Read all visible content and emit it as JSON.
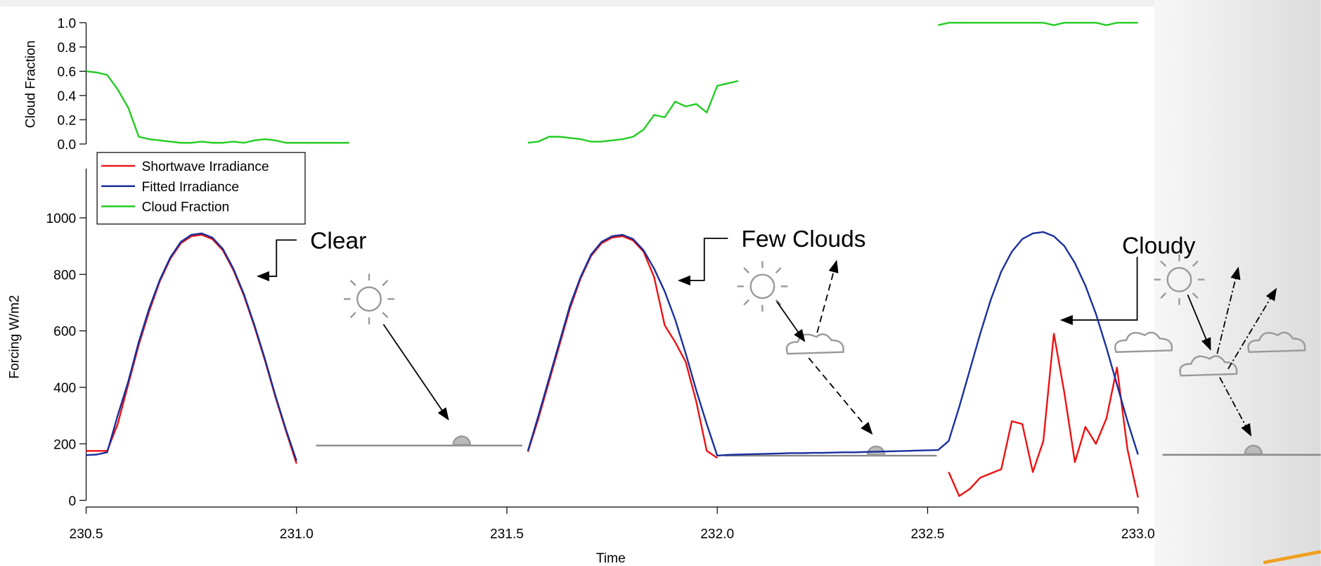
{
  "chart_data": {
    "type": "line",
    "x_label": "Time",
    "y_label": "Forcing W/m2",
    "y2_label": "Cloud Fraction",
    "xlim": [
      230.5,
      233.0
    ],
    "xticks": [
      230.5,
      {
        "value": 231.0,
        "label": "231.0"
      },
      231.5,
      {
        "value": 232.0,
        "label": "232.0"
      },
      232.5,
      {
        "value": 233.0,
        "label": "233.0"
      }
    ],
    "ylim": [
      0,
      1175
    ],
    "yticks": [
      0,
      200,
      400,
      600,
      800,
      1000
    ],
    "y2lim": [
      0,
      1
    ],
    "y2ticks": [
      {
        "value": 0,
        "label": "0.0"
      },
      0.2,
      0.4,
      0.6,
      0.8,
      {
        "value": 1,
        "label": "1.0"
      }
    ],
    "annotations": [
      "Clear",
      "Few Clouds",
      "Cloudy"
    ],
    "legend": "upper left",
    "x": [
      230.5,
      230.525,
      230.55,
      230.575,
      230.6,
      230.625,
      230.65,
      230.675,
      230.7,
      230.725,
      230.75,
      230.775,
      230.8,
      230.825,
      230.85,
      230.875,
      230.9,
      230.925,
      230.95,
      230.975,
      231.0,
      231.025,
      231.05,
      231.075,
      231.1,
      231.125,
      231.15,
      231.175,
      231.2,
      231.225,
      231.25,
      231.275,
      231.3,
      231.325,
      231.35,
      231.375,
      231.4,
      231.425,
      231.45,
      231.475,
      231.5,
      231.525,
      231.55,
      231.575,
      231.6,
      231.625,
      231.65,
      231.675,
      231.7,
      231.725,
      231.75,
      231.775,
      231.8,
      231.825,
      231.85,
      231.875,
      231.9,
      231.925,
      231.95,
      231.975,
      232.0,
      232.025,
      232.05,
      232.075,
      232.1,
      232.125,
      232.15,
      232.175,
      232.2,
      232.225,
      232.25,
      232.275,
      232.3,
      232.325,
      232.35,
      232.375,
      232.4,
      232.425,
      232.45,
      232.475,
      232.5,
      232.525,
      232.55,
      232.575,
      232.6,
      232.625,
      232.65,
      232.675,
      232.7,
      232.725,
      232.75,
      232.775,
      232.8,
      232.825,
      232.85,
      232.875,
      232.9,
      232.925,
      232.95,
      232.975,
      233.0
    ],
    "series": [
      {
        "name": "Shortwave Irradiance",
        "color": "#ee1111",
        "values": [
          175,
          175,
          175,
          270,
          410,
          550,
          670,
          775,
          855,
          910,
          935,
          940,
          925,
          885,
          815,
          725,
          615,
          495,
          365,
          245,
          130,
          null,
          null,
          null,
          null,
          null,
          null,
          null,
          null,
          null,
          null,
          null,
          null,
          null,
          null,
          null,
          null,
          null,
          null,
          null,
          null,
          null,
          172,
          290,
          420,
          550,
          680,
          785,
          865,
          910,
          930,
          935,
          920,
          880,
          790,
          620,
          560,
          490,
          350,
          175,
          150,
          null,
          null,
          null,
          null,
          null,
          null,
          null,
          null,
          null,
          null,
          null,
          null,
          null,
          null,
          null,
          null,
          null,
          null,
          null,
          null,
          null,
          100,
          15,
          40,
          80,
          95,
          110,
          280,
          270,
          100,
          210,
          590,
          380,
          135,
          260,
          200,
          290,
          470,
          180,
          10
        ]
      },
      {
        "name": "Fitted Irradiance",
        "color": "#1a2f9c",
        "values": [
          160,
          162,
          170,
          300,
          420,
          560,
          680,
          780,
          860,
          915,
          940,
          945,
          930,
          890,
          820,
          730,
          620,
          500,
          370,
          250,
          140,
          null,
          null,
          null,
          null,
          null,
          null,
          null,
          null,
          null,
          null,
          null,
          null,
          null,
          null,
          null,
          null,
          null,
          null,
          null,
          null,
          null,
          175,
          300,
          430,
          560,
          690,
          790,
          870,
          915,
          935,
          940,
          925,
          885,
          820,
          740,
          640,
          520,
          390,
          270,
          158,
          161,
          162,
          163,
          164,
          165,
          166,
          167,
          167,
          168,
          168,
          169,
          170,
          170,
          171,
          172,
          173,
          174,
          175,
          176,
          177,
          178,
          210,
          330,
          460,
          590,
          710,
          810,
          880,
          925,
          945,
          950,
          935,
          900,
          840,
          760,
          660,
          540,
          410,
          280,
          162
        ]
      },
      {
        "name": "Cloud Fraction",
        "color": "#22cc22",
        "axis": "y2",
        "values": [
          0.6,
          0.59,
          0.57,
          0.45,
          0.3,
          0.06,
          0.04,
          0.03,
          0.02,
          0.01,
          0.01,
          0.02,
          0.01,
          0.01,
          0.02,
          0.01,
          0.03,
          0.04,
          0.03,
          0.01,
          0.01,
          0.01,
          0.01,
          0.01,
          0.01,
          0.01,
          null,
          null,
          null,
          null,
          null,
          null,
          null,
          null,
          null,
          null,
          null,
          null,
          null,
          null,
          null,
          null,
          0.01,
          0.02,
          0.06,
          0.06,
          0.05,
          0.04,
          0.02,
          0.02,
          0.03,
          0.04,
          0.06,
          0.12,
          0.24,
          0.22,
          0.35,
          0.31,
          0.33,
          0.26,
          0.48,
          0.5,
          0.52,
          null,
          null,
          null,
          null,
          null,
          null,
          null,
          null,
          null,
          null,
          null,
          null,
          null,
          null,
          null,
          null,
          null,
          null,
          0.98,
          1.0,
          1.0,
          1.0,
          1.0,
          1.0,
          1.0,
          1.0,
          1.0,
          1.0,
          1.0,
          0.98,
          1.0,
          1.0,
          1.0,
          1.0,
          0.98,
          1.0,
          1.0,
          1.0
        ]
      }
    ]
  }
}
